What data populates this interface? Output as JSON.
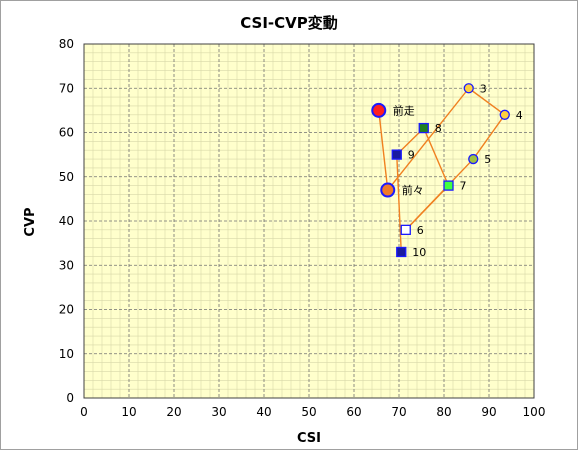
{
  "chart_data": {
    "type": "scatter",
    "title": "CSI-CVP変動",
    "xlabel": "CSI",
    "ylabel": "CVP",
    "xlim": [
      0,
      100
    ],
    "ylim": [
      0,
      80
    ],
    "x_ticks": [
      0,
      10,
      20,
      30,
      40,
      50,
      60,
      70,
      80,
      90,
      100
    ],
    "y_ticks": [
      0,
      10,
      20,
      30,
      40,
      50,
      60,
      70,
      80
    ],
    "grid": true,
    "legend": "none",
    "plot_background": "#ffffcc",
    "line_color": "#f08020",
    "points": [
      {
        "label": "前走",
        "x": 65.5,
        "y": 65,
        "marker": "circle",
        "fill": "#ff2020",
        "stroke": "#1a1aff"
      },
      {
        "label": "前々",
        "x": 67.5,
        "y": 47,
        "marker": "circle",
        "fill": "#f07828",
        "stroke": "#1a1aff"
      },
      {
        "label": "3",
        "x": 85.5,
        "y": 70,
        "marker": "circle",
        "fill": "#ffd040",
        "stroke": "#1a1aff"
      },
      {
        "label": "4",
        "x": 93.5,
        "y": 64,
        "marker": "circle",
        "fill": "#ffd040",
        "stroke": "#1a1aff"
      },
      {
        "label": "5",
        "x": 86.5,
        "y": 54,
        "marker": "circle",
        "fill": "#a0c040",
        "stroke": "#1a1aff"
      },
      {
        "label": "6",
        "x": 71.5,
        "y": 38,
        "marker": "square",
        "fill": "#ffffff",
        "stroke": "#1a1aff"
      },
      {
        "label": "7",
        "x": 81,
        "y": 48,
        "marker": "square",
        "fill": "#40ff40",
        "stroke": "#1a1aff"
      },
      {
        "label": "8",
        "x": 75.5,
        "y": 61,
        "marker": "square",
        "fill": "#208020",
        "stroke": "#1a1aff"
      },
      {
        "label": "9",
        "x": 69.5,
        "y": 55,
        "marker": "square",
        "fill": "#1a1aa0",
        "stroke": "#1a1aff"
      },
      {
        "label": "10",
        "x": 70.5,
        "y": 33,
        "marker": "square",
        "fill": "#1a1aa0",
        "stroke": "#1a1aff"
      }
    ]
  }
}
